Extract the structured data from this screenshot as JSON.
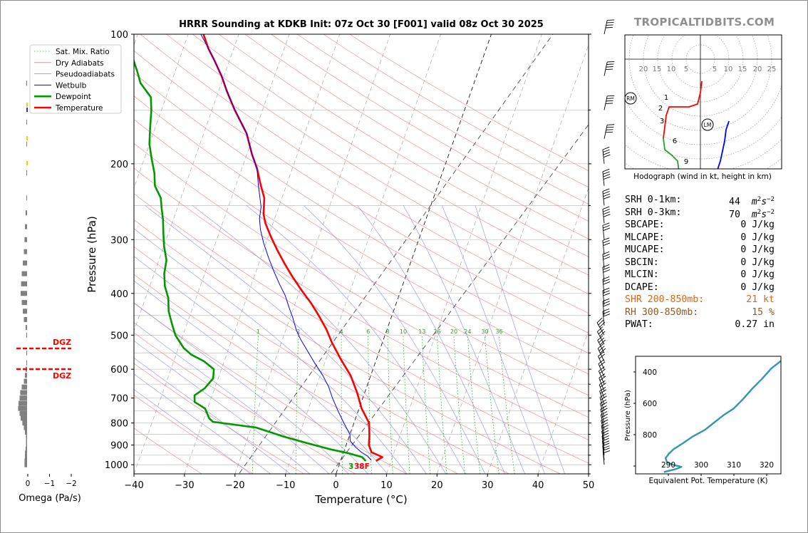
{
  "title": "HRRR Sounding at KDKB Init: 07z Oct 30 [F001] valid 08z Oct 30 2025",
  "brand": "TROPICALTIDBITS.COM",
  "chart_data": [
    {
      "type": "line",
      "name": "skewt",
      "xlabel": "Temperature (°C)",
      "ylabel": "Pressure (hPa)",
      "xlim": [
        -40,
        50
      ],
      "ylim": [
        1050,
        100
      ],
      "y_scale": "log",
      "x_ticks": [
        "−40",
        "−30",
        "−20",
        "−10",
        "0",
        "10",
        "20",
        "30",
        "40",
        "50"
      ],
      "y_ticks": [
        "100",
        "200",
        "300",
        "400",
        "500",
        "600",
        "700",
        "800",
        "900",
        "1000"
      ],
      "legend": {
        "placement": "top-left",
        "entries": [
          "Sat. Mix. Ratio",
          "Dry Adiabats",
          "Pseudoadiabats",
          "Wetbulb",
          "Dewpoint",
          "Temperature"
        ]
      },
      "mixing_ratio_labels": [
        "1",
        "2",
        "4",
        "6",
        "8",
        "10",
        "13",
        "16",
        "20",
        "24",
        "30",
        "36"
      ],
      "series": [
        {
          "name": "Temperature",
          "color": "#ff0000",
          "points": [
            [
              7,
              980
            ],
            [
              8,
              960
            ],
            [
              5.5,
              935
            ],
            [
              4.5,
              900
            ],
            [
              4,
              860
            ],
            [
              3,
              800
            ],
            [
              0.5,
              740
            ],
            [
              -1.5,
              680
            ],
            [
              -4,
              620
            ],
            [
              -7,
              570
            ],
            [
              -10,
              520
            ],
            [
              -12,
              485
            ],
            [
              -14.5,
              450
            ],
            [
              -17,
              420
            ],
            [
              -19.5,
              395
            ],
            [
              -22.5,
              365
            ],
            [
              -25,
              340
            ],
            [
              -27.5,
              315
            ],
            [
              -29.5,
              295
            ],
            [
              -31.5,
              275
            ],
            [
              -32.5,
              262
            ],
            [
              -33.5,
              240
            ],
            [
              -35,
              225
            ],
            [
              -37,
              205
            ],
            [
              -39,
              190
            ],
            [
              -41.5,
              170
            ],
            [
              -45.5,
              150
            ],
            [
              -48.5,
              135
            ],
            [
              -50.5,
              125
            ],
            [
              -53,
              115
            ],
            [
              -55,
              108
            ],
            [
              -57,
              100
            ]
          ]
        },
        {
          "name": "Dewpoint",
          "color": "#009900",
          "points": [
            [
              5,
              980
            ],
            [
              4,
              960
            ],
            [
              1,
              940
            ],
            [
              -3,
              920
            ],
            [
              -8,
              890
            ],
            [
              -13,
              860
            ],
            [
              -19,
              820
            ],
            [
              -28,
              795
            ],
            [
              -29,
              780
            ],
            [
              -30.5,
              740
            ],
            [
              -33,
              715
            ],
            [
              -33.5,
              690
            ],
            [
              -32,
              665
            ],
            [
              -31,
              630
            ],
            [
              -31.5,
              600
            ],
            [
              -34,
              575
            ],
            [
              -37,
              555
            ],
            [
              -39,
              535
            ],
            [
              -41.5,
              500
            ],
            [
              -43,
              470
            ],
            [
              -44.5,
              440
            ],
            [
              -45.5,
              410
            ],
            [
              -47,
              385
            ],
            [
              -48,
              360
            ],
            [
              -48.5,
              335
            ],
            [
              -50,
              310
            ],
            [
              -51,
              290
            ],
            [
              -52,
              270
            ],
            [
              -53,
              255
            ],
            [
              -54,
              240
            ],
            [
              -56,
              225
            ],
            [
              -57,
              210
            ],
            [
              -58.5,
              195
            ],
            [
              -60,
              180
            ],
            [
              -61,
              165
            ],
            [
              -62,
              150
            ],
            [
              -63,
              140
            ],
            [
              -66,
              130
            ],
            [
              -67.5,
              122
            ],
            [
              -69,
              115
            ],
            [
              -71.5,
              100
            ]
          ]
        },
        {
          "name": "Wetbulb",
          "color": "#0000ff",
          "points": [
            [
              6,
              975
            ],
            [
              5,
              955
            ],
            [
              3.5,
              935
            ],
            [
              2,
              910
            ],
            [
              0.5,
              880
            ],
            [
              0,
              850
            ],
            [
              -2,
              800
            ],
            [
              -4,
              750
            ],
            [
              -6,
              700
            ],
            [
              -7.5,
              660
            ],
            [
              -9.5,
              620
            ],
            [
              -12,
              580
            ],
            [
              -14.5,
              540
            ],
            [
              -16.5,
              510
            ],
            [
              -18,
              485
            ],
            [
              -19.5,
              455
            ],
            [
              -21,
              430
            ],
            [
              -22.5,
              405
            ],
            [
              -24.5,
              380
            ],
            [
              -26.5,
              355
            ],
            [
              -28.5,
              330
            ],
            [
              -30.5,
              305
            ],
            [
              -32,
              285
            ],
            [
              -33,
              268
            ],
            [
              -33.5,
              252
            ],
            [
              -34.5,
              238
            ],
            [
              -35.5,
              225
            ],
            [
              -37,
              205
            ],
            [
              -39,
              190
            ],
            [
              -41.5,
              170
            ],
            [
              -45,
              152
            ],
            [
              -47.5,
              140
            ],
            [
              -50,
              127
            ],
            [
              -52.5,
              117
            ],
            [
              -55,
              108
            ],
            [
              -57.5,
              100
            ]
          ]
        }
      ],
      "annotations": [
        "3",
        "38F"
      ]
    },
    {
      "type": "bar",
      "name": "omega",
      "xlabel": "Omega (Pa/s)",
      "x_ticks": [
        "0",
        "−1",
        "−2"
      ],
      "dgz_label": "DGZ",
      "dgz_pressures": [
        545,
        605
      ],
      "levels": [
        [
          1000,
          0.12
        ],
        [
          980,
          0.12
        ],
        [
          960,
          0.1
        ],
        [
          940,
          0.1
        ],
        [
          920,
          0.07
        ],
        [
          900,
          0.05
        ],
        [
          880,
          0.05
        ],
        [
          860,
          0.05
        ],
        [
          840,
          0.1
        ],
        [
          820,
          0.15
        ],
        [
          800,
          0.22
        ],
        [
          780,
          0.3
        ],
        [
          760,
          0.35
        ],
        [
          740,
          0.42
        ],
        [
          720,
          0.4
        ],
        [
          700,
          0.35
        ],
        [
          680,
          0.32
        ],
        [
          660,
          0.25
        ],
        [
          640,
          0.15
        ],
        [
          620,
          0.1
        ],
        [
          600,
          0.07
        ],
        [
          580,
          0.03
        ],
        [
          550,
          0.03
        ],
        [
          500,
          0.04
        ],
        [
          480,
          0.07
        ],
        [
          460,
          0.15
        ],
        [
          440,
          0.2
        ],
        [
          420,
          0.25
        ],
        [
          400,
          0.3
        ],
        [
          380,
          0.28
        ],
        [
          360,
          0.25
        ],
        [
          340,
          0.2
        ],
        [
          320,
          0.15
        ],
        [
          300,
          0.12
        ],
        [
          280,
          0.1
        ],
        [
          260,
          0.07
        ],
        [
          240,
          0.02
        ],
        [
          210,
          0.01
        ],
        [
          180,
          0.01
        ],
        [
          160,
          0.02
        ],
        [
          130,
          0.04
        ]
      ]
    },
    {
      "type": "line",
      "name": "hodograph",
      "xlabel": "Hodograph (wind in kt, height in km)",
      "ring_labels": [
        "20",
        "15",
        "10",
        "5",
        "5",
        "10",
        "15",
        "20",
        "25"
      ],
      "height_labels": [
        "1",
        "2",
        "3",
        "6",
        "9"
      ],
      "markers": [
        "RM",
        "LM"
      ],
      "segments": [
        {
          "color": "#ff0000",
          "points": [
            [
              0.5,
              4
            ],
            [
              0,
              0
            ],
            [
              -1,
              -4
            ],
            [
              -4,
              -5
            ],
            [
              -11,
              -5
            ],
            [
              -12,
              -8
            ]
          ]
        },
        {
          "color": "#ff0000",
          "points": [
            [
              -12,
              -8
            ],
            [
              -12.5,
              -12
            ],
            [
              -13,
              -16
            ]
          ]
        },
        {
          "color": "#2ca02c",
          "points": [
            [
              -13,
              -16
            ],
            [
              -12.5,
              -20
            ],
            [
              -10,
              -22
            ],
            [
              -8,
              -24
            ],
            [
              -7.5,
              -28
            ]
          ]
        },
        {
          "color": "#cc44cc",
          "points": [
            [
              -7.5,
              -28
            ],
            [
              -6.5,
              -31
            ],
            [
              -6,
              -34
            ],
            [
              -5,
              -35.5
            ]
          ]
        },
        {
          "color": "#0000ff",
          "points": [
            [
              -5,
              -35.5
            ],
            [
              -4,
              -39
            ],
            [
              0,
              -34
            ],
            [
              4,
              -29
            ],
            [
              6,
              -27
            ],
            [
              7,
              -24
            ],
            [
              8.5,
              -17
            ],
            [
              9,
              -13
            ],
            [
              10,
              -10
            ]
          ]
        }
      ]
    },
    {
      "type": "line",
      "name": "theta-e",
      "xlabel": "Equivalent Pot. Temperature (K)",
      "ylabel": "Pressure (hPa)",
      "x_ticks": [
        "290",
        "300",
        "310",
        "320"
      ],
      "y_ticks": [
        "400",
        "600",
        "800"
      ],
      "color": "#3399aa",
      "points": [
        [
          293,
          1010
        ],
        [
          297,
          975
        ],
        [
          298.5,
          955
        ],
        [
          296,
          935
        ],
        [
          294,
          910
        ],
        [
          293.5,
          870
        ],
        [
          294.5,
          830
        ],
        [
          296,
          790
        ],
        [
          299,
          740
        ],
        [
          302,
          690
        ],
        [
          306,
          640
        ],
        [
          309,
          590
        ],
        [
          312,
          545
        ],
        [
          315,
          510
        ],
        [
          318,
          460
        ],
        [
          321,
          410
        ],
        [
          324,
          370
        ],
        [
          327,
          330
        ],
        [
          330,
          305
        ]
      ]
    }
  ],
  "stats": [
    {
      "label": "SRH 0-1km:",
      "value": "44",
      "unit": "m2s-2",
      "style": ""
    },
    {
      "label": "SRH 0-3km:",
      "value": "70",
      "unit": "m2s-2",
      "style": ""
    },
    {
      "label": "SBCAPE:",
      "value": "0 J/kg",
      "unit": "",
      "style": ""
    },
    {
      "label": "MLCAPE:",
      "value": "0 J/kg",
      "unit": "",
      "style": ""
    },
    {
      "label": "MUCAPE:",
      "value": "0 J/kg",
      "unit": "",
      "style": ""
    },
    {
      "label": "SBCIN:",
      "value": "0 J/kg",
      "unit": "",
      "style": ""
    },
    {
      "label": "MLCIN:",
      "value": "0 J/kg",
      "unit": "",
      "style": ""
    },
    {
      "label": "DCAPE:",
      "value": "0 J/kg",
      "unit": "",
      "style": ""
    },
    {
      "label": "SHR 200-850mb:",
      "value": "21 kt",
      "unit": "",
      "style": "orange"
    },
    {
      "label": "RH 300-850mb:",
      "value": "15 %",
      "unit": "",
      "style": "brown"
    },
    {
      "label": "PWAT:",
      "value": "0.27 in",
      "unit": "",
      "style": ""
    }
  ]
}
